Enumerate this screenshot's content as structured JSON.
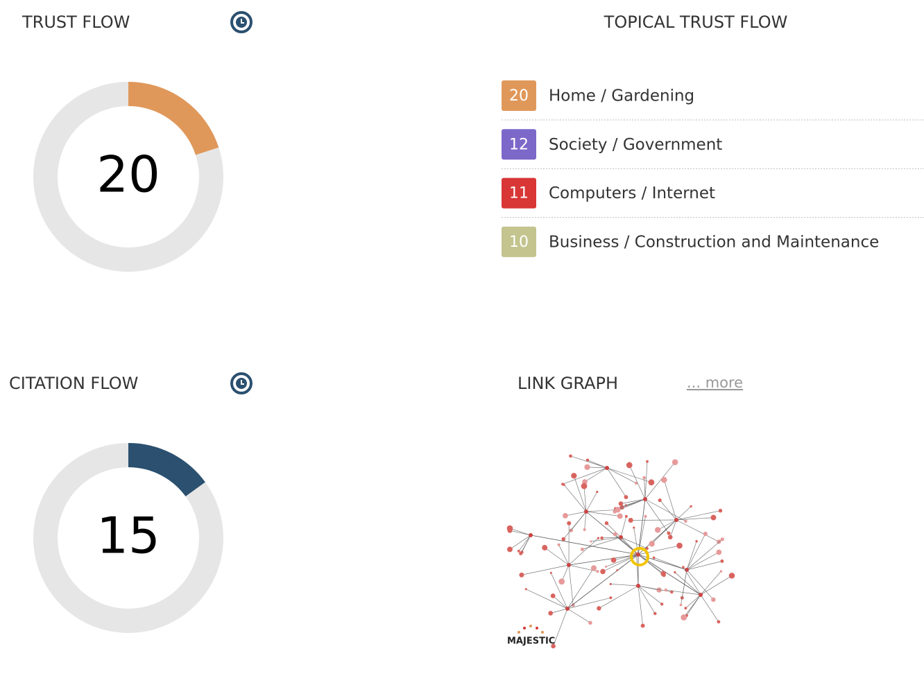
{
  "trust_flow": {
    "title": "TRUST FLOW",
    "value": 20,
    "color": "#e0985a",
    "ylim": [
      0,
      100
    ]
  },
  "citation_flow": {
    "title": "CITATION FLOW",
    "value": 15,
    "color": "#2b5070",
    "ylim": [
      0,
      100
    ]
  },
  "topical_trust_flow": {
    "title": "TOPICAL TRUST FLOW",
    "items": [
      {
        "value": 20,
        "label": "Home / Gardening",
        "color": "#e0985a"
      },
      {
        "value": 12,
        "label": "Society / Government",
        "color": "#7b68c9"
      },
      {
        "value": 11,
        "label": "Computers / Internet",
        "color": "#d93636"
      },
      {
        "value": 10,
        "label": "Business / Construction and Maintenance",
        "color": "#c3c48e"
      }
    ]
  },
  "link_graph": {
    "title": "LINK GRAPH",
    "link": "... more",
    "logo": "MAJESTIC"
  }
}
